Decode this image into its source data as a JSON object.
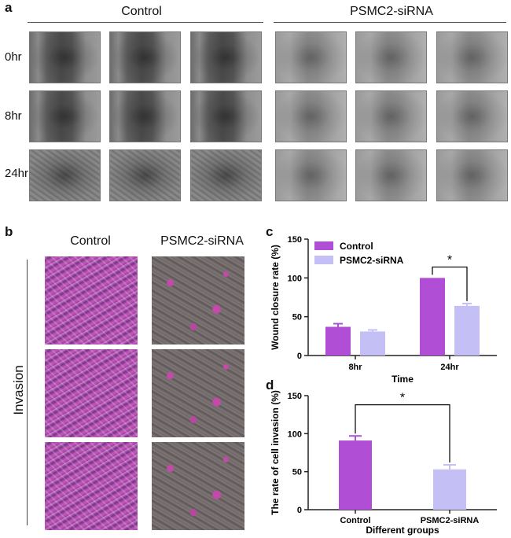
{
  "panel_a": {
    "letter": "a",
    "groups": [
      "Control",
      "PSMC2-siRNA"
    ],
    "rows": [
      "0hr",
      "8hr",
      "24hr"
    ]
  },
  "panel_b": {
    "letter": "b",
    "groups": [
      "Control",
      "PSMC2-siRNA"
    ],
    "side_label": "Invasion"
  },
  "chart_data": [
    {
      "panel": "c",
      "type": "bar",
      "categories": [
        "8hr",
        "24hr"
      ],
      "series": [
        {
          "name": "Control",
          "values": [
            37,
            100
          ],
          "errors": [
            4,
            0
          ],
          "color": "#b04fd6"
        },
        {
          "name": "PSMC2-siRNA",
          "values": [
            31,
            64
          ],
          "errors": [
            2,
            3
          ],
          "color": "#c4c0f5"
        }
      ],
      "xlabel": "Time",
      "ylabel": "Wound closure rate (%)",
      "ylim": [
        0,
        150
      ],
      "yticks": [
        0,
        50,
        100,
        150
      ],
      "legend": "top-left",
      "significance": "*"
    },
    {
      "panel": "d",
      "type": "bar",
      "categories": [
        "Control",
        "PSMC2-siRNA"
      ],
      "values": [
        91,
        53
      ],
      "errors": [
        6,
        6
      ],
      "colors": [
        "#b04fd6",
        "#c4c0f5"
      ],
      "xlabel": "Different groups",
      "ylabel": "The rate of cell invasion (%)",
      "ylim": [
        0,
        150
      ],
      "yticks": [
        0,
        50,
        100,
        150
      ],
      "significance": "*"
    }
  ]
}
